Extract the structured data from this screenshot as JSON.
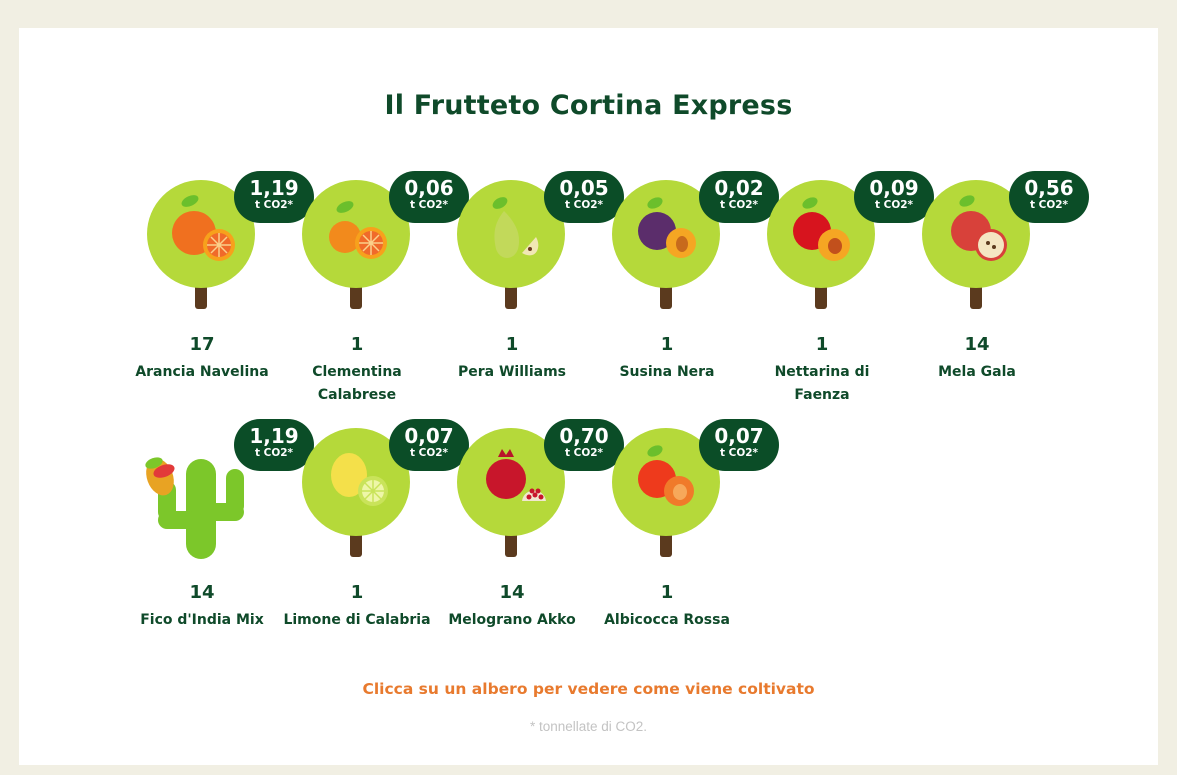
{
  "title": "Il Frutteto Cortina Express",
  "unit_label": "t CO2*",
  "trees": [
    {
      "count": "17",
      "name": "Arancia Navelina",
      "co2": "1,19",
      "fruit": "orange-icon"
    },
    {
      "count": "1",
      "name": "Clementina Calabrese",
      "co2": "0,06",
      "fruit": "clementine-icon"
    },
    {
      "count": "1",
      "name": "Pera Williams",
      "co2": "0,05",
      "fruit": "pear-icon"
    },
    {
      "count": "1",
      "name": "Susina Nera",
      "co2": "0,02",
      "fruit": "plum-icon"
    },
    {
      "count": "1",
      "name": "Nettarina di Faenza",
      "co2": "0,09",
      "fruit": "nectarine-icon"
    },
    {
      "count": "14",
      "name": "Mela Gala",
      "co2": "0,56",
      "fruit": "apple-icon"
    },
    {
      "count": "14",
      "name": "Fico d'India Mix",
      "co2": "1,19",
      "fruit": "prickly-pear-icon"
    },
    {
      "count": "1",
      "name": "Limone di Calabria",
      "co2": "0,07",
      "fruit": "lemon-icon"
    },
    {
      "count": "14",
      "name": "Melograno Akko",
      "co2": "0,70",
      "fruit": "pomegranate-icon"
    },
    {
      "count": "1",
      "name": "Albicocca Rossa",
      "co2": "0,07",
      "fruit": "apricot-icon"
    }
  ],
  "cta": "Clicca su un albero per vedere come viene coltivato",
  "footnote": "* tonnellate di CO2.",
  "colors": {
    "dark_green": "#0b4d27",
    "canopy": "#b5d93a",
    "trunk": "#5b3a1e",
    "cta_orange": "#e87a2e"
  }
}
